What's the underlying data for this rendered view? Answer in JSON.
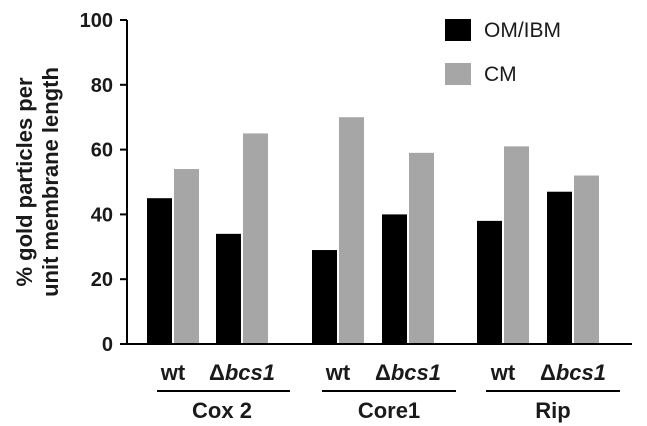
{
  "chart_data": {
    "type": "bar",
    "ylabel_lines": [
      "% gold particles per",
      "unit membrane length"
    ],
    "ylim": [
      0,
      100
    ],
    "yticks": [
      "0",
      "20",
      "40",
      "60",
      "80",
      "100"
    ],
    "grid": false,
    "legend_position": "top-right",
    "categories": [
      {
        "label": "wt",
        "italic_part": "",
        "group": 0
      },
      {
        "label": "Δ",
        "italic_part": "bcs1",
        "group": 0
      },
      {
        "label": "wt",
        "italic_part": "",
        "group": 1
      },
      {
        "label": "Δ",
        "italic_part": "bcs1",
        "group": 1
      },
      {
        "label": "wt",
        "italic_part": "",
        "group": 2
      },
      {
        "label": "Δ",
        "italic_part": "bcs1",
        "group": 2
      }
    ],
    "groups": [
      "Cox 2",
      "Core1",
      "Rip"
    ],
    "series": [
      {
        "name": "OM/IBM",
        "color": "#000000",
        "values": [
          45,
          34,
          29,
          40,
          38,
          47
        ]
      },
      {
        "name": "CM",
        "color": "#a6a6a6",
        "values": [
          54,
          65,
          70,
          59,
          61,
          52
        ]
      }
    ]
  }
}
